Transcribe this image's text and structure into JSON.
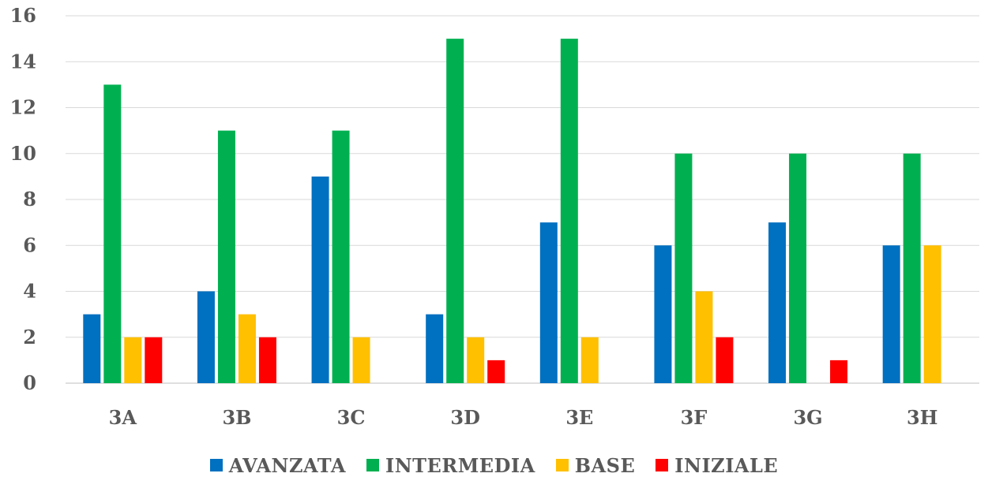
{
  "chart_data": {
    "type": "bar",
    "categories": [
      "3A",
      "3B",
      "3C",
      "3D",
      "3E",
      "3F",
      "3G",
      "3H"
    ],
    "series": [
      {
        "name": "AVANZATA",
        "color": "#0070C0",
        "values": [
          3,
          4,
          9,
          3,
          7,
          6,
          7,
          6
        ]
      },
      {
        "name": "INTERMEDIA",
        "color": "#00B050",
        "values": [
          13,
          11,
          11,
          15,
          15,
          10,
          10,
          10
        ]
      },
      {
        "name": "BASE",
        "color": "#FFC000",
        "values": [
          2,
          3,
          2,
          2,
          2,
          4,
          0,
          6
        ]
      },
      {
        "name": "INIZIALE",
        "color": "#FF0000",
        "values": [
          2,
          2,
          0,
          1,
          0,
          2,
          1,
          0
        ]
      }
    ],
    "ylim": [
      0,
      16
    ],
    "yticks": [
      0,
      2,
      4,
      6,
      8,
      10,
      12,
      14,
      16
    ],
    "grid": true,
    "legend_position": "bottom",
    "title": "",
    "xlabel": "",
    "ylabel": ""
  }
}
